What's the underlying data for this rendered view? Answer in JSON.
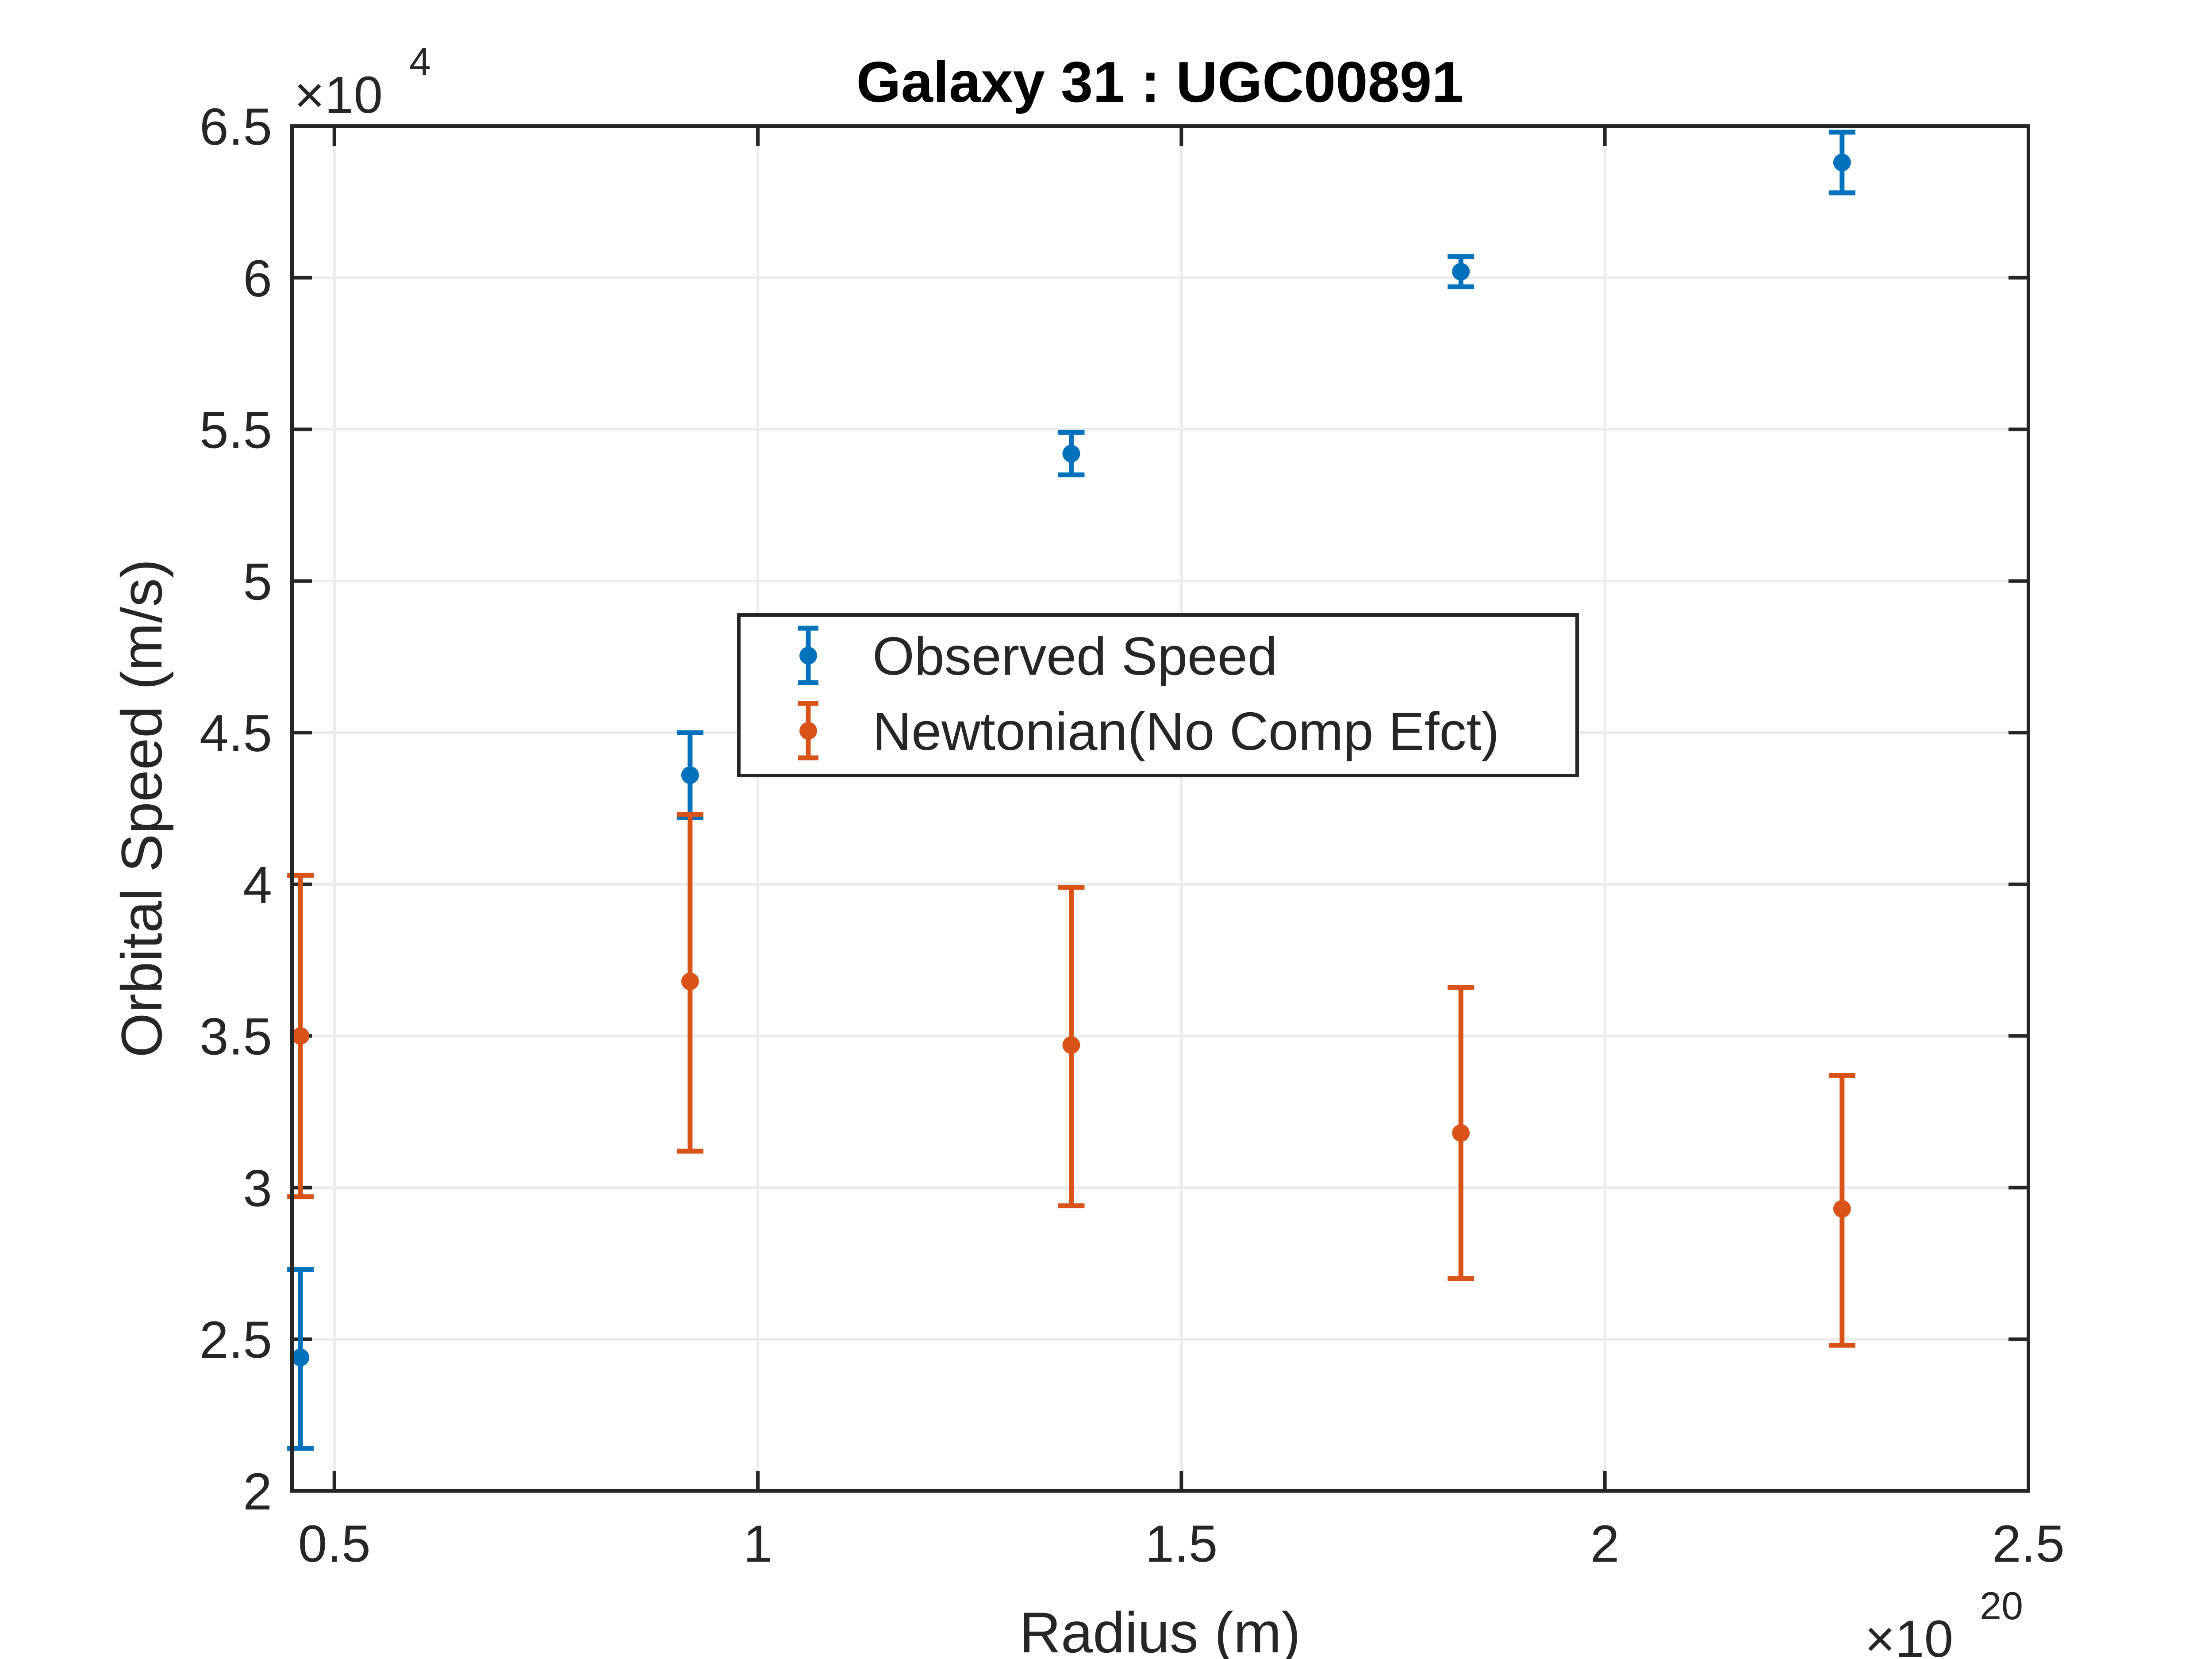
{
  "chart_data": {
    "type": "scatter",
    "title": "Galaxy 31 : UGC00891",
    "xlabel": "Radius (m)",
    "ylabel": "Orbital Speed (m/s)",
    "x_exponent_label": "×10",
    "x_exponent": "20",
    "y_exponent_label": "×10",
    "y_exponent": "4",
    "xlim": [
      0.45,
      2.5
    ],
    "ylim": [
      2.0,
      6.5
    ],
    "xticks": [
      0.5,
      1,
      1.5,
      2,
      2.5
    ],
    "xtick_labels": [
      "0.5",
      "1",
      "1.5",
      "2",
      "2.5"
    ],
    "yticks": [
      2,
      2.5,
      3,
      3.5,
      4,
      4.5,
      5,
      5.5,
      6,
      6.5
    ],
    "ytick_labels": [
      "2",
      "2.5",
      "3",
      "3.5",
      "4",
      "4.5",
      "5",
      "5.5",
      "6",
      "6.5"
    ],
    "grid": true,
    "legend_position": "center",
    "x_units": "×10^20 m",
    "y_units": "×10^4 m/s",
    "series": [
      {
        "name": "Observed Speed",
        "color": "#0072BD",
        "x": [
          0.46,
          0.92,
          1.37,
          1.83,
          2.28
        ],
        "y": [
          2.44,
          4.36,
          5.42,
          6.02,
          6.38
        ],
        "err_low": [
          0.3,
          0.14,
          0.07,
          0.05,
          0.1
        ],
        "err_high": [
          0.29,
          0.14,
          0.07,
          0.05,
          0.1
        ]
      },
      {
        "name": "Newtonian(No Comp Efct)",
        "color": "#D95319",
        "x": [
          0.46,
          0.92,
          1.37,
          1.83,
          2.28
        ],
        "y": [
          3.5,
          3.68,
          3.47,
          3.18,
          2.93
        ],
        "err_low": [
          0.53,
          0.56,
          0.53,
          0.48,
          0.45
        ],
        "err_high": [
          0.53,
          0.55,
          0.52,
          0.48,
          0.44
        ]
      }
    ]
  }
}
